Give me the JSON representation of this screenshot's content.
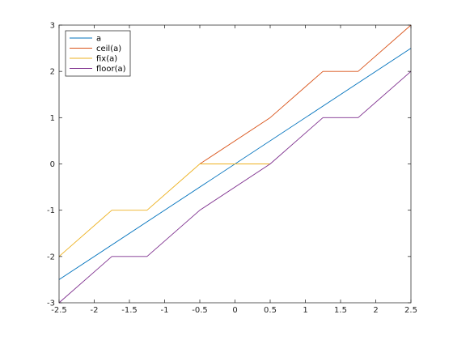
{
  "chart_data": {
    "type": "line",
    "title": "",
    "xlabel": "",
    "ylabel": "",
    "xlim": [
      -2.5,
      2.5
    ],
    "ylim": [
      -3,
      3
    ],
    "xticks": [
      "-2.5",
      "-2",
      "-1.5",
      "-1",
      "-0.5",
      "0",
      "0.5",
      "1",
      "1.5",
      "2",
      "2.5"
    ],
    "yticks": [
      "-3",
      "-2",
      "-1",
      "0",
      "1",
      "2",
      "3"
    ],
    "grid": false,
    "legend_position": "top-left",
    "series": [
      {
        "name": "a",
        "color": "#0072BD",
        "x": [
          -2.5,
          2.5
        ],
        "y": [
          -2.5,
          2.5
        ]
      },
      {
        "name": "ceil(a)",
        "color": "#D95319",
        "x": [
          -0.5,
          0.5,
          1.25,
          1.75,
          2.5
        ],
        "y": [
          0,
          1,
          2,
          2,
          3
        ]
      },
      {
        "name": "fix(a)",
        "color": "#EDB120",
        "x": [
          -2.5,
          -1.75,
          -1.25,
          -0.5,
          0.5
        ],
        "y": [
          -2,
          -1,
          -1,
          0,
          0
        ]
      },
      {
        "name": "floor(a)",
        "color": "#7E2F8E",
        "x": [
          -2.5,
          -1.75,
          -1.25,
          -0.5,
          0.5,
          1.25,
          1.75,
          2.5
        ],
        "y": [
          -3,
          -2,
          -2,
          -1,
          0,
          1,
          1,
          2
        ]
      }
    ]
  }
}
